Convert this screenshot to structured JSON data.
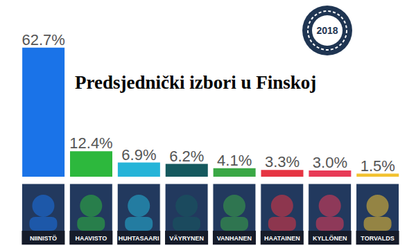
{
  "chart_data": {
    "type": "bar",
    "title": "Predsjednički izbori u Finskoj",
    "annotations": [
      "2018"
    ],
    "categories": [
      "NIINISTÖ",
      "HAAVISTO",
      "HUHTASAARI",
      "VÄYRYNEN",
      "VANHANEN",
      "HAATAINEN",
      "KYLLÖNEN",
      "TORVALDS"
    ],
    "values": [
      62.7,
      12.4,
      6.9,
      6.2,
      4.1,
      3.3,
      3.0,
      1.5
    ],
    "value_labels": [
      "62.7%",
      "12.4%",
      "6.9%",
      "6.2%",
      "4.1%",
      "3.3%",
      "3.0%",
      "1.5%"
    ],
    "data_labels": true,
    "colors": [
      "#1a73e8",
      "#2db83d",
      "#25b4d8",
      "#15595e",
      "#3aa845",
      "#e63442",
      "#e83a56",
      "#f2c230"
    ],
    "ylim": [
      0,
      65
    ],
    "yticks": [
      0,
      65
    ],
    "tick_labels": "x",
    "grid": false
  }
}
